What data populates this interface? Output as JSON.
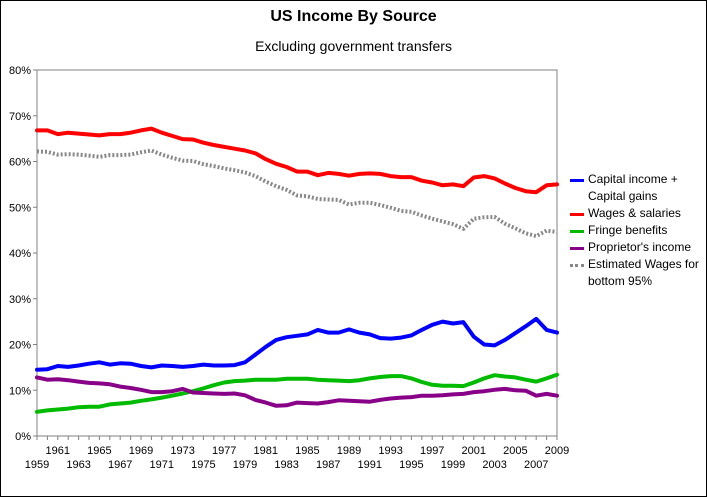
{
  "header": {
    "title": "US Income By Source",
    "subtitle": "Excluding government transfers"
  },
  "chart_data": {
    "type": "line",
    "title": "US Income By Source",
    "subtitle": "Excluding government transfers",
    "xlabel": "",
    "ylabel": "",
    "xlim": [
      1959,
      2009
    ],
    "ylim": [
      0,
      80
    ],
    "y_ticks": [
      "0%",
      "10%",
      "20%",
      "30%",
      "40%",
      "50%",
      "60%",
      "70%",
      "80%"
    ],
    "x_ticks_lower": [
      "1959",
      "1963",
      "1967",
      "1971",
      "1975",
      "1979",
      "1983",
      "1987",
      "1991",
      "1995",
      "1999",
      "2003",
      "2007"
    ],
    "x_ticks_upper": [
      "1961",
      "1965",
      "1969",
      "1973",
      "1977",
      "1981",
      "1985",
      "1989",
      "1993",
      "1997",
      "2001",
      "2005",
      "2009"
    ],
    "grid": false,
    "legend_position": "right",
    "x": [
      1959,
      1960,
      1961,
      1962,
      1963,
      1964,
      1965,
      1966,
      1967,
      1968,
      1969,
      1970,
      1971,
      1972,
      1973,
      1974,
      1975,
      1976,
      1977,
      1978,
      1979,
      1980,
      1981,
      1982,
      1983,
      1984,
      1985,
      1986,
      1987,
      1988,
      1989,
      1990,
      1991,
      1992,
      1993,
      1994,
      1995,
      1996,
      1997,
      1998,
      1999,
      2000,
      2001,
      2002,
      2003,
      2004,
      2005,
      2006,
      2007,
      2008,
      2009
    ],
    "series": [
      {
        "name": "Capital income + Capital gains",
        "color": "#0000ff",
        "style": "solid",
        "values": [
          14.5,
          14.6,
          15.3,
          15.1,
          15.4,
          15.8,
          16.1,
          15.6,
          15.9,
          15.8,
          15.3,
          15.0,
          15.4,
          15.3,
          15.1,
          15.3,
          15.6,
          15.4,
          15.4,
          15.5,
          16.1,
          17.8,
          19.5,
          21.0,
          21.6,
          21.9,
          22.2,
          23.2,
          22.6,
          22.6,
          23.3,
          22.6,
          22.2,
          21.4,
          21.3,
          21.5,
          22.0,
          23.2,
          24.3,
          25.0,
          24.6,
          24.9,
          21.7,
          20.0,
          19.8,
          21.0,
          22.5,
          24.0,
          25.6,
          23.2,
          22.6
        ]
      },
      {
        "name": "Wages & salaries",
        "color": "#ff0000",
        "style": "solid",
        "values": [
          66.8,
          66.8,
          66.0,
          66.3,
          66.1,
          65.9,
          65.7,
          66.0,
          66.0,
          66.3,
          66.8,
          67.2,
          66.3,
          65.6,
          64.9,
          64.8,
          64.1,
          63.6,
          63.2,
          62.8,
          62.4,
          61.8,
          60.5,
          59.5,
          58.8,
          57.8,
          57.8,
          57.0,
          57.5,
          57.3,
          56.9,
          57.3,
          57.4,
          57.3,
          56.8,
          56.6,
          56.6,
          55.8,
          55.4,
          54.8,
          55.0,
          54.6,
          56.5,
          56.8,
          56.3,
          55.2,
          54.2,
          53.5,
          53.3,
          54.8,
          55.0
        ]
      },
      {
        "name": "Fringe benefits",
        "color": "#00bb00",
        "style": "solid",
        "values": [
          5.3,
          5.6,
          5.8,
          6.0,
          6.3,
          6.4,
          6.4,
          6.9,
          7.1,
          7.3,
          7.7,
          8.0,
          8.4,
          8.8,
          9.3,
          9.8,
          10.4,
          11.1,
          11.7,
          12.0,
          12.1,
          12.3,
          12.3,
          12.3,
          12.5,
          12.5,
          12.5,
          12.3,
          12.2,
          12.1,
          12.0,
          12.2,
          12.6,
          12.9,
          13.1,
          13.1,
          12.6,
          11.8,
          11.2,
          11.0,
          11.0,
          10.9,
          11.7,
          12.6,
          13.3,
          13.0,
          12.8,
          12.3,
          11.9,
          12.6,
          13.4
        ]
      },
      {
        "name": "Proprietor's income",
        "color": "#880088",
        "style": "solid",
        "values": [
          12.8,
          12.3,
          12.4,
          12.2,
          11.9,
          11.6,
          11.5,
          11.3,
          10.8,
          10.5,
          10.1,
          9.6,
          9.6,
          9.8,
          10.3,
          9.5,
          9.4,
          9.3,
          9.2,
          9.3,
          8.9,
          7.9,
          7.3,
          6.6,
          6.7,
          7.3,
          7.2,
          7.1,
          7.4,
          7.8,
          7.7,
          7.6,
          7.5,
          7.9,
          8.2,
          8.4,
          8.5,
          8.8,
          8.8,
          8.9,
          9.1,
          9.2,
          9.6,
          9.8,
          10.1,
          10.3,
          10.0,
          9.9,
          8.8,
          9.2,
          8.8
        ]
      },
      {
        "name": "Estimated Wages for bottom 95%",
        "color": "#888888",
        "style": "dotted",
        "values": [
          62.2,
          62.1,
          61.5,
          61.6,
          61.5,
          61.3,
          61.0,
          61.4,
          61.4,
          61.5,
          62.0,
          62.4,
          61.5,
          60.8,
          60.2,
          60.1,
          59.4,
          59.0,
          58.5,
          58.1,
          57.6,
          56.8,
          55.6,
          54.6,
          53.8,
          52.6,
          52.4,
          51.8,
          51.7,
          51.6,
          50.6,
          51.0,
          51.0,
          50.5,
          49.9,
          49.2,
          49.0,
          48.2,
          47.5,
          46.9,
          46.3,
          45.3,
          47.5,
          47.8,
          47.9,
          46.4,
          45.4,
          44.3,
          43.7,
          44.9,
          44.6
        ]
      }
    ]
  },
  "legend": {
    "items": [
      {
        "label": "Capital income + Capital gains",
        "color": "#0000ff"
      },
      {
        "label": "Wages & salaries",
        "color": "#ff0000"
      },
      {
        "label": "Fringe benefits",
        "color": "#00bb00"
      },
      {
        "label": "Proprietor's income",
        "color": "#880088"
      },
      {
        "label": "Estimated Wages for bottom 95%",
        "color": "#888888"
      }
    ]
  }
}
